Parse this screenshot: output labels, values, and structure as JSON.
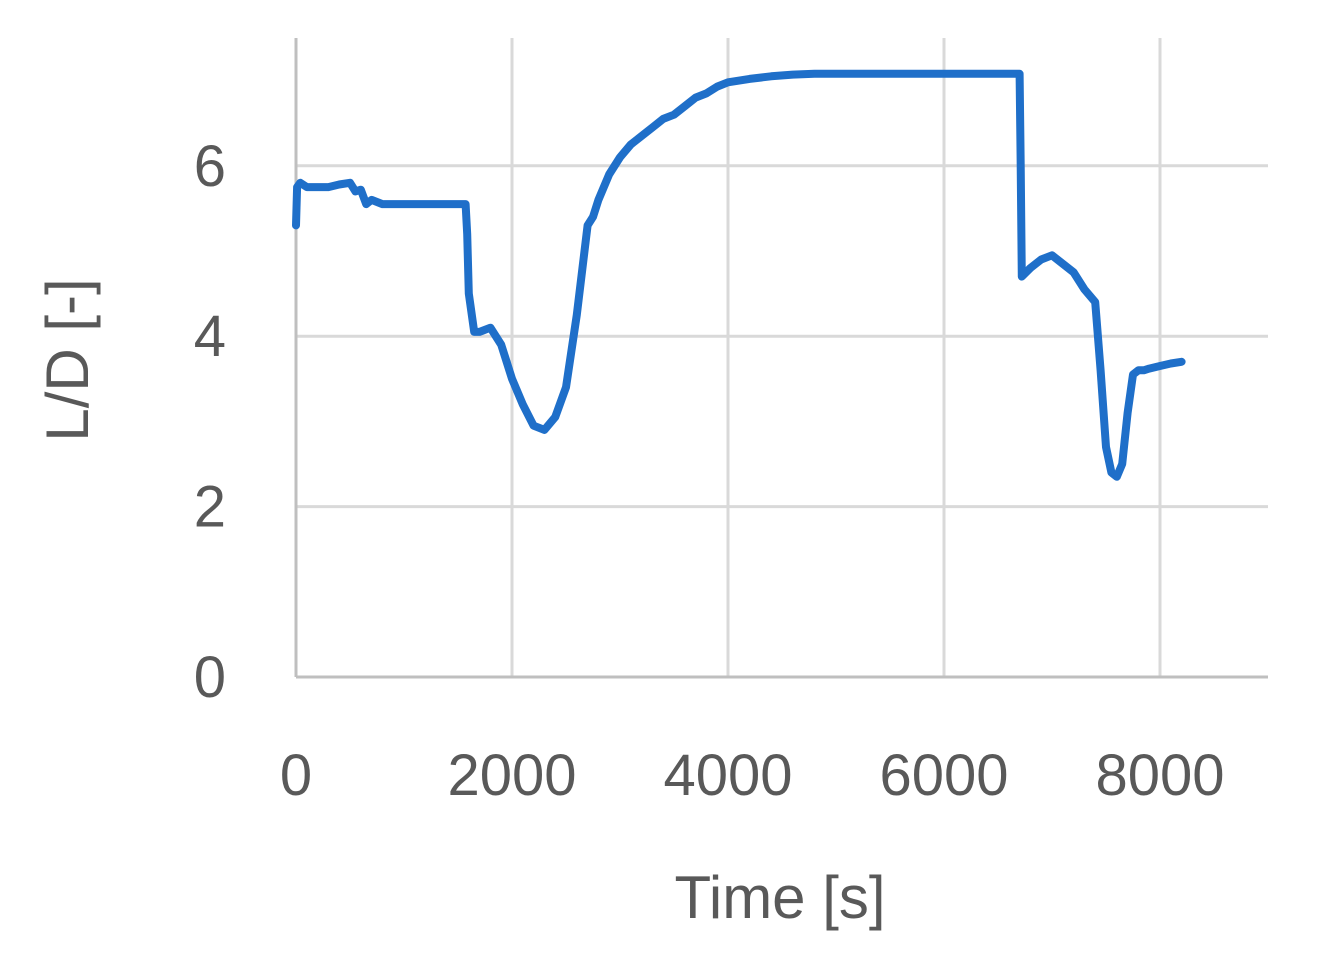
{
  "chart_data": {
    "type": "line",
    "title": "",
    "xlabel": "Time [s]",
    "ylabel": "L/D [-]",
    "xlim": [
      0,
      9000
    ],
    "ylim": [
      0,
      7.5
    ],
    "xticks": [
      0,
      2000,
      4000,
      6000,
      8000
    ],
    "yticks": [
      0,
      2,
      4,
      6
    ],
    "grid": true,
    "line_color": "#1f6fc9",
    "grid_color": "#d9d9d9",
    "axis_color": "#bfbfbf",
    "text_color": "#595959",
    "series": [
      {
        "x": [
          0,
          10,
          40,
          100,
          200,
          300,
          400,
          500,
          550,
          600,
          650,
          700,
          800,
          1000,
          1200,
          1400,
          1570,
          1585,
          1600,
          1650,
          1700,
          1800,
          1900,
          2000,
          2100,
          2200,
          2300,
          2400,
          2500,
          2600,
          2700,
          2750,
          2800,
          2900,
          3000,
          3100,
          3200,
          3300,
          3400,
          3500,
          3600,
          3700,
          3800,
          3900,
          4000,
          4200,
          4400,
          4600,
          4800,
          5000,
          5500,
          6000,
          6500,
          6700,
          6710,
          6720,
          6800,
          6900,
          7000,
          7100,
          7200,
          7300,
          7400,
          7450,
          7500,
          7550,
          7600,
          7650,
          7700,
          7750,
          7800,
          7850,
          7900,
          8000,
          8100,
          8200
        ],
        "y": [
          5.3,
          5.75,
          5.8,
          5.75,
          5.75,
          5.75,
          5.78,
          5.8,
          5.7,
          5.72,
          5.55,
          5.6,
          5.55,
          5.55,
          5.55,
          5.55,
          5.55,
          5.2,
          4.5,
          4.05,
          4.05,
          4.1,
          3.9,
          3.5,
          3.2,
          2.95,
          2.9,
          3.05,
          3.4,
          4.25,
          5.3,
          5.4,
          5.6,
          5.9,
          6.1,
          6.25,
          6.35,
          6.45,
          6.55,
          6.6,
          6.7,
          6.8,
          6.85,
          6.93,
          6.98,
          7.02,
          7.05,
          7.07,
          7.08,
          7.08,
          7.08,
          7.08,
          7.08,
          7.08,
          6.0,
          4.7,
          4.8,
          4.9,
          4.95,
          4.85,
          4.75,
          4.55,
          4.4,
          3.6,
          2.7,
          2.4,
          2.35,
          2.5,
          3.1,
          3.55,
          3.6,
          3.6,
          3.62,
          3.65,
          3.68,
          3.7
        ]
      }
    ]
  }
}
